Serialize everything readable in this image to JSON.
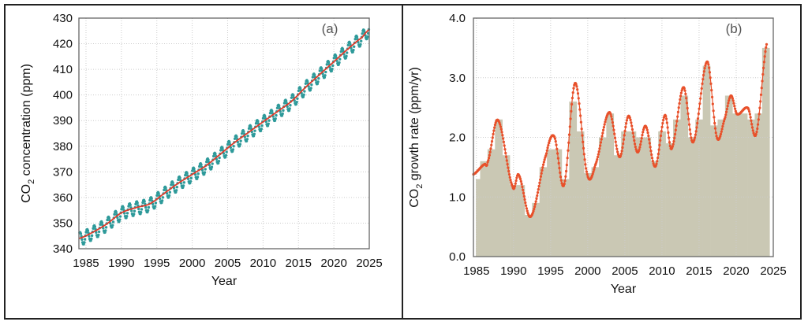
{
  "chart_data": [
    {
      "type": "line",
      "panel_label": "(a)",
      "xlabel": "Year",
      "ylabel_main": "CO",
      "ylabel_sub": "2",
      "ylabel_rest": " concentration (ppm)",
      "xlim": [
        1984,
        2025
      ],
      "ylim": [
        340,
        430
      ],
      "xticks": [
        1985,
        1990,
        1995,
        2000,
        2005,
        2010,
        2015,
        2020,
        2025
      ],
      "yticks": [
        340,
        350,
        360,
        370,
        380,
        390,
        400,
        410,
        420,
        430
      ],
      "grid": true,
      "series": [
        {
          "kind": "monthly-dots",
          "color": "#2e9a9a",
          "seasonal_amplitude_ppm": 2.6
        },
        {
          "kind": "trend-line",
          "color": "#e03a2a",
          "x": [
            1984,
            1986,
            1988,
            1990,
            1992,
            1994,
            1996,
            1998,
            2000,
            2002,
            2004,
            2006,
            2008,
            2010,
            2012,
            2014,
            2016,
            2018,
            2020,
            2022,
            2024,
            2025
          ],
          "y": [
            344,
            346.5,
            349.8,
            354,
            356,
            357.5,
            361.5,
            365.5,
            369,
            372.5,
            377,
            381.5,
            385.5,
            389.5,
            393.5,
            397.5,
            403,
            408,
            413,
            418,
            422.5,
            425.5
          ]
        }
      ]
    },
    {
      "type": "bar",
      "panel_label": "(b)",
      "xlabel": "Year",
      "ylabel_main": "CO",
      "ylabel_sub": "2",
      "ylabel_rest": " growth rate (ppm/yr)",
      "xlim": [
        1984.6,
        2025
      ],
      "ylim": [
        0,
        4
      ],
      "xticks": [
        1985,
        1990,
        1995,
        2000,
        2005,
        2010,
        2015,
        2020,
        2025
      ],
      "yticks": [
        "0.0",
        "1.0",
        "2.0",
        "3.0",
        "4.0"
      ],
      "grid": true,
      "bar_color": "#cac8b4",
      "categories": [
        1985,
        1986,
        1987,
        1988,
        1989,
        1990,
        1991,
        1992,
        1993,
        1994,
        1995,
        1996,
        1997,
        1998,
        1999,
        2000,
        2001,
        2002,
        2003,
        2004,
        2005,
        2006,
        2007,
        2008,
        2009,
        2010,
        2011,
        2012,
        2013,
        2014,
        2015,
        2016,
        2017,
        2018,
        2019,
        2020,
        2021,
        2022,
        2023,
        2024
      ],
      "values": [
        1.3,
        1.6,
        1.8,
        2.3,
        1.7,
        1.2,
        1.2,
        0.7,
        0.9,
        1.5,
        1.8,
        1.8,
        1.3,
        2.6,
        2.1,
        1.4,
        1.5,
        2.0,
        2.4,
        1.7,
        2.1,
        2.1,
        2.0,
        2.0,
        1.6,
        2.1,
        1.9,
        2.3,
        2.7,
        2.0,
        2.3,
        3.2,
        2.2,
        2.3,
        2.7,
        2.4,
        2.4,
        2.3,
        2.4,
        3.5
      ],
      "curve": {
        "color": "#e8502a",
        "x": [
          1984.6,
          1986.1,
          1986.5,
          1987.9,
          1989.9,
          1990.7,
          1992.3,
          1994.4,
          1995.5,
          1996.8,
          1998.3,
          1999.9,
          2001.0,
          2002.9,
          2004.3,
          2005.5,
          2006.7,
          2007.8,
          2009.1,
          2010.4,
          2011.3,
          2012.9,
          2014.2,
          2016.1,
          2017.4,
          2018.5,
          2019.3,
          2020.1,
          2021.6,
          2022.7,
          2024.1
        ],
        "y": [
          1.38,
          1.55,
          1.58,
          2.29,
          1.17,
          1.37,
          0.67,
          1.71,
          2.01,
          1.2,
          2.91,
          1.4,
          1.53,
          2.42,
          1.67,
          2.36,
          1.75,
          2.19,
          1.51,
          2.37,
          1.81,
          2.84,
          1.92,
          3.27,
          2.0,
          2.33,
          2.7,
          2.39,
          2.49,
          2.06,
          3.56
        ]
      }
    }
  ]
}
